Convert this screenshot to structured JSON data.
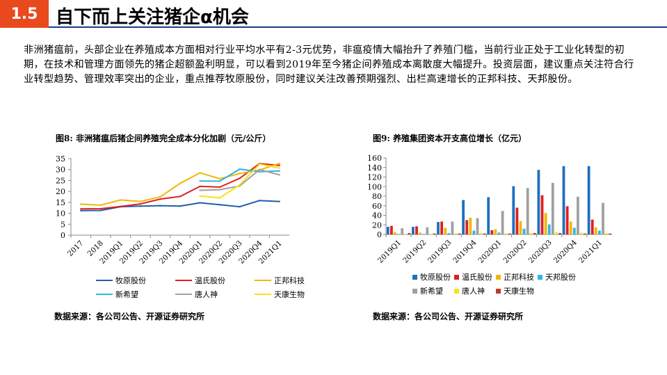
{
  "header": {
    "section_number": "1.5",
    "title": "自下而上关注猪企α机会",
    "accent": "#e8491d",
    "rule_color": "#1a3c8c"
  },
  "intro": "非洲猪瘟前，头部企业在养殖成本方面相对行业平均水平有2-3元优势，非瘟疫情大幅抬升了养殖门槛，当前行业正处于工业化转型的初期，在技术和管理方面领先的猪企超额盈利明显，可以看到2019年至今猪企间养殖成本离散度大幅提升。投资层面，建议重点关注符合行业转型趋势、管理效率突出的企业，重点推荐牧原股份，同时建议关注改善预期强烈、出栏高速增长的正邦科技、天邦股份。",
  "left": {
    "title": "图8:  非洲猪瘟后猪企间养殖完全成本分化加剧（元/公斤）",
    "source": "数据来源：各公司公告、开源证券研究所"
  },
  "right": {
    "title": "图9:  养殖集团资本开支高位增长（亿元）",
    "source": "数据来源：各公司公告、开源证券研究所"
  },
  "chart_data": [
    {
      "type": "line",
      "title": "图8:  非洲猪瘟后猪企间养殖完全成本分化加剧（元/公斤）",
      "categories": [
        "2017",
        "2018",
        "2019Q1",
        "2019Q2",
        "2019Q3",
        "2019Q4",
        "2020Q1",
        "2020Q2",
        "2020Q3",
        "2020Q4",
        "2021Q1"
      ],
      "ylim": [
        0,
        35
      ],
      "yticks": [
        0,
        5,
        10,
        15,
        20,
        25,
        30,
        35
      ],
      "grid": false,
      "legend_position": "bottom",
      "series": [
        {
          "name": "牧原股份",
          "color": "#1f5fa8",
          "values": [
            11.2,
            11.3,
            13.0,
            13.3,
            13.5,
            13.3,
            14.8,
            13.9,
            13.0,
            15.8,
            15.4
          ]
        },
        {
          "name": "温氏股份",
          "color": "#e02020",
          "values": [
            12.0,
            12.1,
            13.1,
            14.3,
            16.5,
            17.7,
            22.3,
            22.0,
            26.0,
            32.7,
            31.9
          ]
        },
        {
          "name": "正邦科技",
          "color": "#f2b705",
          "values": [
            14.2,
            13.7,
            16.1,
            15.4,
            17.5,
            23.7,
            28.5,
            25.8,
            28.2,
            29.8,
            32.8
          ]
        },
        {
          "name": "新希望",
          "color": "#2fb5e8",
          "values": [
            null,
            null,
            null,
            null,
            null,
            null,
            24.8,
            24.7,
            30.2,
            29.0,
            29.4
          ]
        },
        {
          "name": "唐人神",
          "color": "#a0a0a0",
          "values": [
            null,
            null,
            null,
            null,
            null,
            null,
            20.5,
            20.8,
            22.5,
            30.0,
            27.6
          ]
        },
        {
          "name": "天康生物",
          "color": "#f7e11c",
          "values": [
            null,
            null,
            null,
            null,
            null,
            null,
            17.9,
            17.1,
            23.0,
            32.5,
            30.7
          ]
        }
      ]
    },
    {
      "type": "bar",
      "title": "图9:  养殖集团资本开支高位增长（亿元）",
      "categories": [
        "2019Q1",
        "2019Q2",
        "2019Q3",
        "2019Q4",
        "2020Q1",
        "2020Q2",
        "2020Q3",
        "2020Q4",
        "2021Q1"
      ],
      "ylim": [
        0,
        160
      ],
      "yticks": [
        0,
        20,
        40,
        60,
        80,
        100,
        120,
        140,
        160
      ],
      "grid": false,
      "legend_position": "bottom",
      "series": [
        {
          "name": "牧原股份",
          "color": "#1f6fbf",
          "values": [
            16,
            16,
            26,
            72,
            78,
            101,
            135,
            143,
            143
          ]
        },
        {
          "name": "温氏股份",
          "color": "#e02020",
          "values": [
            18,
            17,
            27,
            30,
            9,
            56,
            82,
            59,
            31
          ]
        },
        {
          "name": "正邦科技",
          "color": "#f2b705",
          "values": [
            5,
            4,
            14,
            35,
            11,
            28,
            45,
            27,
            15
          ]
        },
        {
          "name": "天邦股份",
          "color": "#2fb5e8",
          "values": [
            1,
            1,
            3,
            8,
            4,
            12,
            21,
            14,
            8
          ]
        },
        {
          "name": "新希望",
          "color": "#a0a0a0",
          "values": [
            13,
            15,
            27,
            34,
            49,
            97,
            108,
            79,
            66
          ]
        },
        {
          "name": "唐人神",
          "color": "#f7e11c",
          "values": [
            1,
            1,
            2,
            3,
            2,
            3,
            5,
            4,
            3
          ]
        },
        {
          "name": "天康生物",
          "color": "#c0392b",
          "values": [
            3,
            2,
            2,
            2,
            2,
            3,
            3,
            2,
            2
          ]
        }
      ]
    }
  ]
}
